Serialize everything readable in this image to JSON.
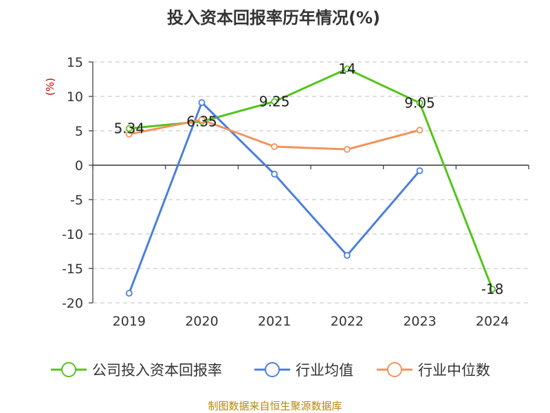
{
  "chart_data": {
    "type": "line",
    "title": "投入资本回报率历年情况(%)",
    "ylabel": "(%)",
    "xlabel": "",
    "categories": [
      "2019",
      "2020",
      "2021",
      "2022",
      "2023",
      "2024"
    ],
    "ylim": [
      -20,
      15
    ],
    "yticks": [
      15,
      10,
      5,
      0,
      -5,
      -10,
      -15,
      -20
    ],
    "grid": true,
    "legend_position": "bottom",
    "series": [
      {
        "name": "公司投入资本回报率",
        "color": "#52c41a",
        "values": [
          5.34,
          6.35,
          9.25,
          14,
          9.05,
          -18
        ],
        "labels": [
          "5.34",
          "6.35",
          "9.25",
          "14",
          "9.05",
          "-18"
        ]
      },
      {
        "name": "行业均值",
        "color": "#4a7fdc",
        "values": [
          -18.6,
          9.1,
          -1.3,
          -13.1,
          -0.8,
          null
        ]
      },
      {
        "name": "行业中位数",
        "color": "#f39259",
        "values": [
          4.5,
          6.6,
          2.7,
          2.3,
          5.1,
          null
        ]
      }
    ]
  },
  "source": "制图数据来自恒生聚源数据库"
}
